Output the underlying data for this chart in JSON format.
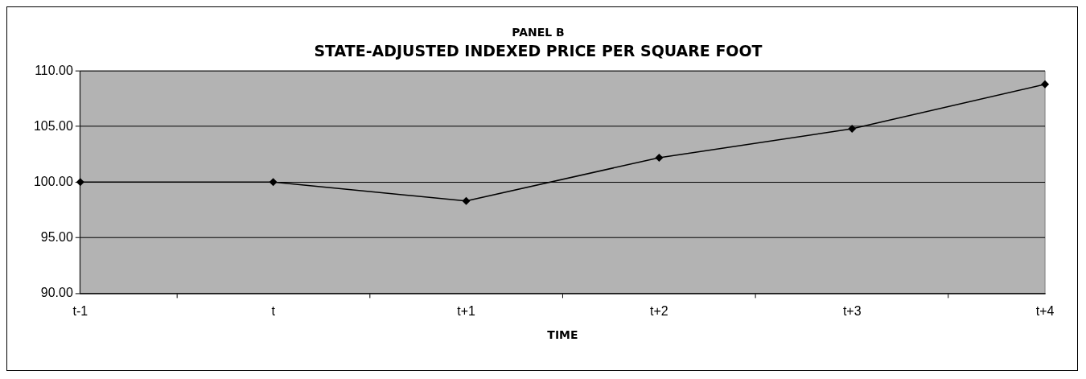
{
  "chart_data": {
    "type": "line",
    "title": "PANEL B",
    "subtitle": "STATE-ADJUSTED INDEXED PRICE PER SQUARE FOOT",
    "xlabel": "TIME",
    "categories": [
      "t-1",
      "t",
      "t+1",
      "t+2",
      "t+3",
      "t+4"
    ],
    "series": [
      {
        "color": "#000000",
        "values": [
          100.0,
          100.0,
          98.3,
          102.2,
          104.8,
          108.8
        ]
      }
    ],
    "ylim": [
      90,
      110
    ],
    "yticks": [
      {
        "value": 90,
        "label": "90.00"
      },
      {
        "value": 95,
        "label": "95.00"
      },
      {
        "value": 100,
        "label": "100.00"
      },
      {
        "value": 105,
        "label": "105.00"
      },
      {
        "value": 110,
        "label": "110.00"
      }
    ],
    "grid": "y",
    "legend": false,
    "marker": "diamond",
    "line_style": "solid"
  }
}
